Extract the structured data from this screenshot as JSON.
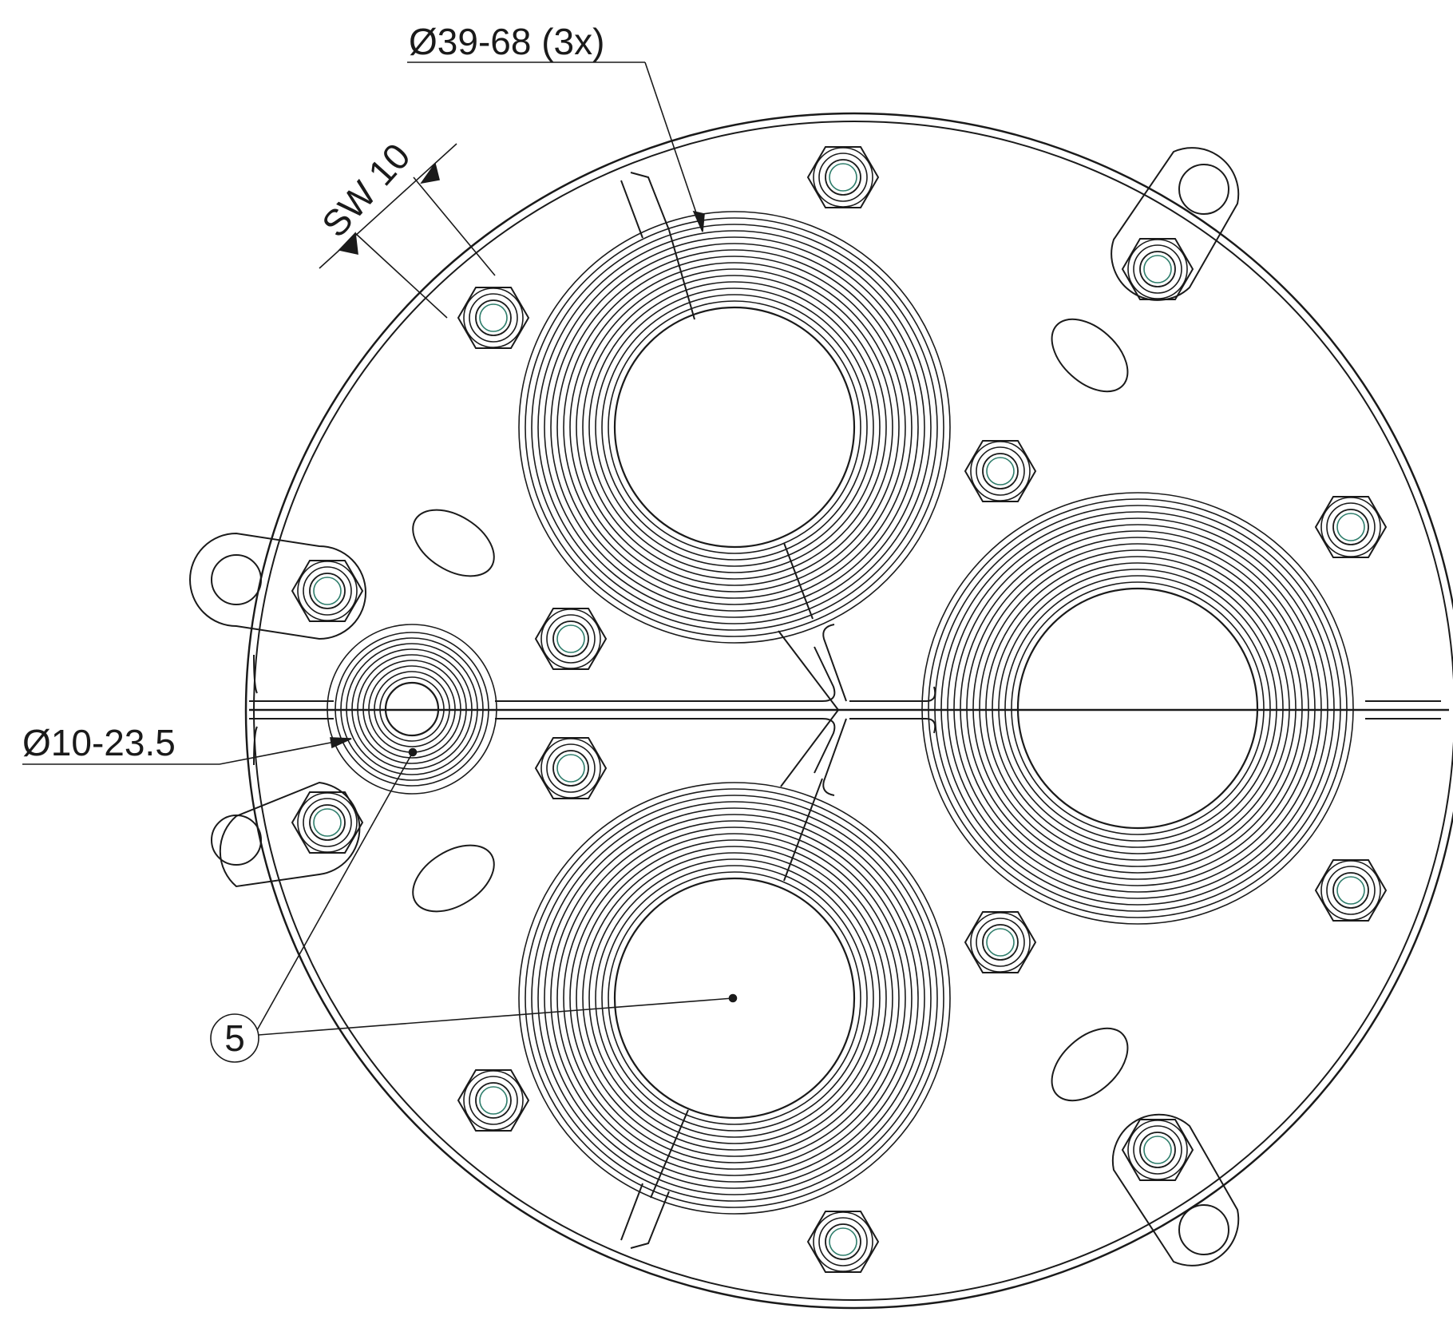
{
  "dimensions": {
    "seal_large": "Ø39-68 (3x)",
    "seal_small": "Ø10-23.5",
    "wrench_size": "SW 10"
  },
  "callouts": {
    "item": "5"
  },
  "colors": {
    "line": "#1a1a1a",
    "background": "#ffffff"
  }
}
